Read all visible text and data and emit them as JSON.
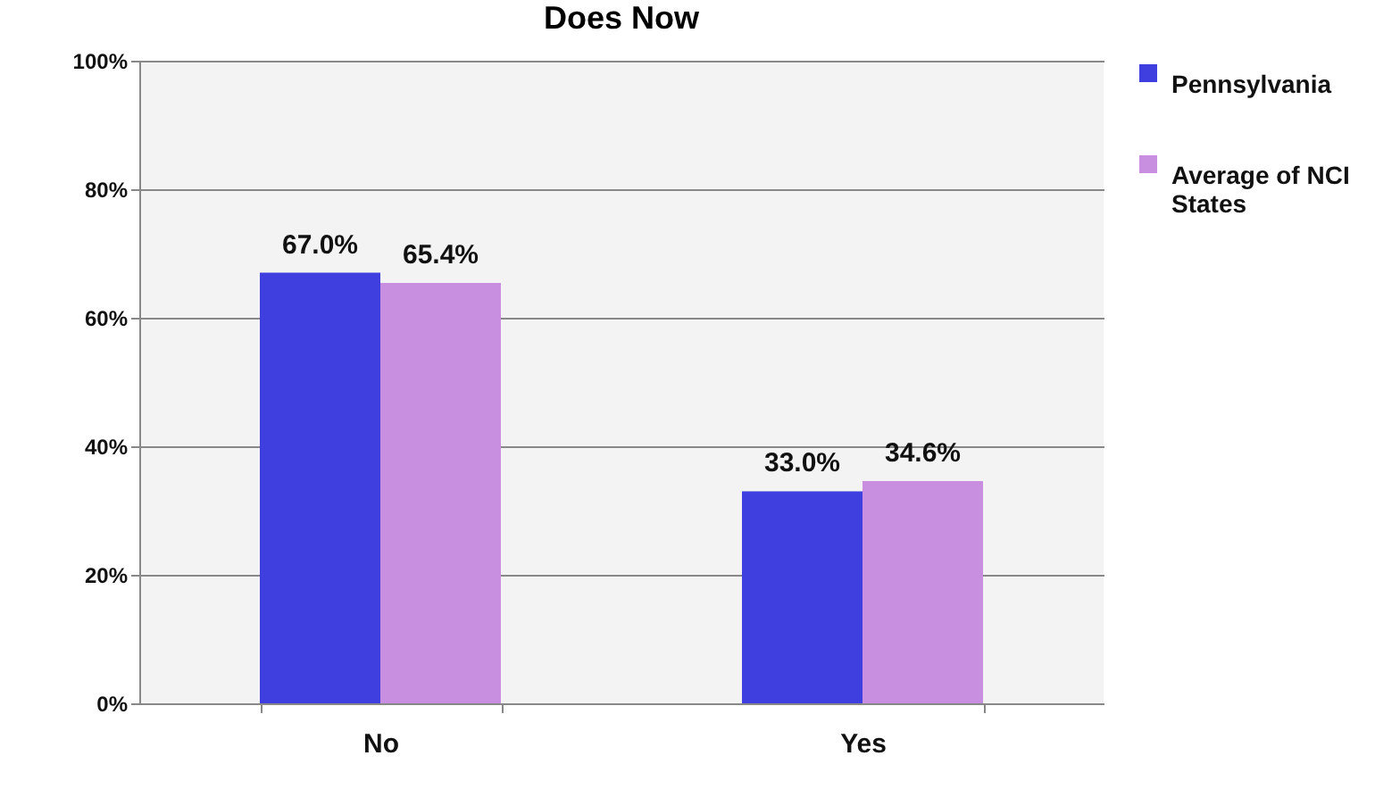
{
  "chart_data": {
    "type": "bar",
    "title": "Does Now",
    "categories": [
      "No",
      "Yes"
    ],
    "series": [
      {
        "name": "Pennsylvania",
        "color": "#3f3fe0",
        "values": [
          67.0,
          33.0
        ],
        "value_labels": [
          "67.0%",
          "33.0%"
        ]
      },
      {
        "name": "Average of NCI States",
        "color": "#c88fe0",
        "values": [
          65.4,
          34.6
        ],
        "value_labels": [
          "65.4%",
          "34.6%"
        ]
      }
    ],
    "ylim": [
      0,
      100
    ],
    "yticks": [
      {
        "value": 0,
        "label": "0%"
      },
      {
        "value": 20,
        "label": "20%"
      },
      {
        "value": 40,
        "label": "40%"
      },
      {
        "value": 60,
        "label": "60%"
      },
      {
        "value": 80,
        "label": "80%"
      },
      {
        "value": 100,
        "label": "100%"
      }
    ],
    "grid": "y",
    "legend": "right"
  }
}
